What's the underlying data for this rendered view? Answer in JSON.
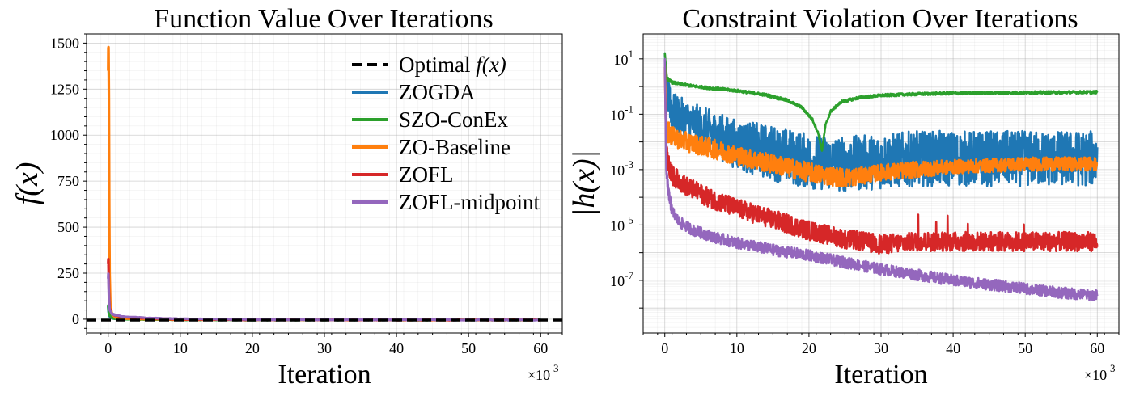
{
  "colors": {
    "ZOGDA": "#1f77b4",
    "SZO-ConEx": "#2ca02c",
    "ZO-Baseline": "#ff7f0e",
    "ZOFL": "#d62728",
    "ZOFL-midpoint": "#9467bd",
    "optimal": "#000000"
  },
  "chart_data": [
    {
      "type": "line",
      "title": "Function Value Over Iterations",
      "xlabel": "Iteration",
      "ylabel": "f(x)",
      "x_multiplier": "×10",
      "x_multiplier_exp": "3",
      "xlim": [
        -3,
        63
      ],
      "ylim": [
        -75,
        1550
      ],
      "xticks": [
        0,
        10,
        20,
        30,
        40,
        50,
        60
      ],
      "yticks": [
        0,
        250,
        500,
        750,
        1000,
        1250,
        1500
      ],
      "grid": true,
      "legend_position": "top-right",
      "legend": [
        {
          "label": "Optimal ",
          "math": "f(x)",
          "style": "dashed",
          "key": "optimal"
        },
        {
          "label": "ZOGDA",
          "key": "ZOGDA"
        },
        {
          "label": "SZO-ConEx",
          "key": "SZO-ConEx"
        },
        {
          "label": "ZO-Baseline",
          "key": "ZO-Baseline"
        },
        {
          "label": "ZOFL",
          "key": "ZOFL"
        },
        {
          "label": "ZOFL-midpoint",
          "key": "ZOFL-midpoint"
        }
      ],
      "optimal_value": -5,
      "series": [
        {
          "name": "ZOGDA",
          "x": [
            0,
            0.05,
            0.2,
            0.5,
            1,
            2,
            5,
            10,
            20,
            40,
            60
          ],
          "y": [
            70,
            40,
            15,
            6,
            3,
            1,
            -1,
            -2,
            -3,
            -4,
            -4
          ]
        },
        {
          "name": "SZO-ConEx",
          "x": [
            0,
            0.05,
            0.2,
            0.5,
            1,
            2,
            5,
            10,
            20,
            40,
            60
          ],
          "y": [
            80,
            50,
            20,
            8,
            3,
            0,
            -2,
            -3,
            -4,
            -4,
            -4
          ]
        },
        {
          "name": "ZO-Baseline",
          "x": [
            0,
            0.02,
            0.05,
            0.1,
            0.15,
            0.2,
            0.3,
            0.5,
            1,
            2,
            5,
            10,
            20,
            40,
            60
          ],
          "y": [
            1350,
            1470,
            1480,
            1200,
            600,
            250,
            80,
            30,
            10,
            5,
            0,
            -2,
            -3,
            -4,
            -4
          ]
        },
        {
          "name": "ZOFL",
          "x": [
            0,
            0.02,
            0.05,
            0.1,
            0.2,
            0.5,
            1,
            2,
            5,
            10,
            20,
            40,
            60
          ],
          "y": [
            300,
            330,
            280,
            150,
            60,
            30,
            20,
            12,
            5,
            0,
            -3,
            -4,
            -4
          ]
        },
        {
          "name": "ZOFL-midpoint",
          "x": [
            0,
            0.02,
            0.05,
            0.1,
            0.2,
            0.5,
            1,
            2,
            5,
            10,
            20,
            40,
            60
          ],
          "y": [
            220,
            250,
            200,
            120,
            50,
            30,
            22,
            15,
            7,
            2,
            -2,
            -3,
            -4
          ]
        }
      ]
    },
    {
      "type": "line",
      "title": "Constraint Violation Over Iterations",
      "xlabel": "Iteration",
      "ylabel": "|h(x)|",
      "x_multiplier": "×10",
      "x_multiplier_exp": "3",
      "yscale": "log",
      "xlim": [
        -3,
        63
      ],
      "ylim_log10": [
        -8.9,
        1.9
      ],
      "xticks": [
        0,
        10,
        20,
        30,
        40,
        50,
        60
      ],
      "yticks_exp": [
        1,
        -1,
        -3,
        -5,
        -7
      ],
      "ytick_base": "10",
      "grid": true,
      "series": [
        {
          "name": "ZOGDA",
          "x": [
            0,
            0.3,
            1,
            3,
            6,
            10,
            15,
            20,
            25,
            30,
            35,
            40,
            45,
            50,
            55,
            60
          ],
          "log10_center": [
            1.2,
            -0.2,
            -0.9,
            -1.2,
            -1.6,
            -2.1,
            -2.4,
            -2.7,
            -2.8,
            -2.7,
            -2.6,
            -2.6,
            -2.6,
            -2.6,
            -2.6,
            -2.6
          ],
          "log10_amp": [
            0,
            0.5,
            0.7,
            0.7,
            0.8,
            0.9,
            1.0,
            1.0,
            1.0,
            1.0,
            1.0,
            1.0,
            1.0,
            1.0,
            1.0,
            1.0
          ]
        },
        {
          "name": "SZO-ConEx",
          "x": [
            0,
            0.3,
            1,
            3,
            6,
            10,
            14,
            17,
            19,
            20.5,
            21.3,
            21.8,
            22.3,
            23,
            24.5,
            27,
            30,
            35,
            40,
            50,
            60
          ],
          "log10_center": [
            1.2,
            0.3,
            0.15,
            0.05,
            -0.05,
            -0.15,
            -0.3,
            -0.5,
            -0.75,
            -1.2,
            -1.7,
            -2.3,
            -1.4,
            -0.9,
            -0.55,
            -0.4,
            -0.32,
            -0.27,
            -0.24,
            -0.22,
            -0.2
          ],
          "log10_amp": [
            0,
            0.05,
            0.05,
            0.05,
            0.05,
            0.05,
            0.05,
            0.05,
            0.05,
            0.05,
            0.05,
            0.05,
            0.05,
            0.05,
            0.05,
            0.05,
            0.05,
            0.05,
            0.05,
            0.05,
            0.05
          ]
        },
        {
          "name": "ZO-Baseline",
          "x": [
            0,
            0.3,
            1,
            3,
            6,
            10,
            15,
            20,
            22,
            25,
            28,
            30,
            35,
            40,
            45,
            50,
            55,
            60
          ],
          "log10_center": [
            0.8,
            -1.6,
            -1.8,
            -2.0,
            -2.2,
            -2.5,
            -2.8,
            -3.1,
            -3.2,
            -3.3,
            -3.2,
            -3.1,
            -3.0,
            -2.9,
            -2.85,
            -2.8,
            -2.8,
            -2.8
          ],
          "log10_amp": [
            0,
            0.4,
            0.35,
            0.35,
            0.35,
            0.35,
            0.35,
            0.35,
            0.35,
            0.35,
            0.3,
            0.3,
            0.3,
            0.25,
            0.25,
            0.25,
            0.25,
            0.25
          ]
        },
        {
          "name": "ZOFL",
          "x": [
            0,
            0.2,
            0.5,
            1,
            3,
            6,
            10,
            15,
            20,
            25,
            30,
            35,
            40,
            45,
            50,
            55,
            60
          ],
          "log10_center": [
            0.7,
            -2.4,
            -2.8,
            -3.2,
            -3.6,
            -4.0,
            -4.4,
            -4.8,
            -5.2,
            -5.5,
            -5.7,
            -5.6,
            -5.6,
            -5.6,
            -5.6,
            -5.6,
            -5.6
          ],
          "log10_amp": [
            0,
            0.35,
            0.35,
            0.35,
            0.35,
            0.35,
            0.35,
            0.35,
            0.35,
            0.35,
            0.35,
            0.35,
            0.35,
            0.35,
            0.35,
            0.35,
            0.35
          ]
        },
        {
          "name": "ZOFL-midpoint",
          "x": [
            0,
            0.2,
            0.5,
            1,
            2,
            4,
            7,
            10,
            15,
            20,
            25,
            30,
            35,
            40,
            45,
            50,
            55,
            60
          ],
          "log10_center": [
            1.0,
            -3.0,
            -3.8,
            -4.5,
            -4.9,
            -5.2,
            -5.45,
            -5.65,
            -5.9,
            -6.1,
            -6.35,
            -6.6,
            -6.8,
            -7.0,
            -7.15,
            -7.3,
            -7.45,
            -7.55
          ],
          "log10_amp": [
            0,
            0.2,
            0.2,
            0.2,
            0.2,
            0.2,
            0.2,
            0.2,
            0.2,
            0.2,
            0.2,
            0.2,
            0.2,
            0.2,
            0.2,
            0.2,
            0.2,
            0.2
          ]
        }
      ]
    }
  ]
}
